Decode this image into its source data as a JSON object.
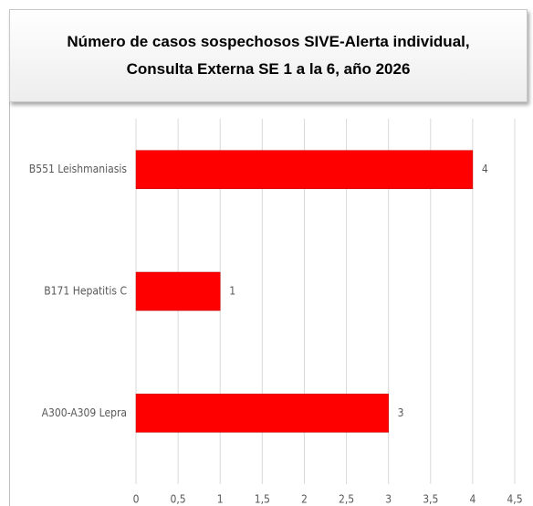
{
  "chart_data": {
    "type": "hbar",
    "title": [
      "Número de casos sospechosos SIVE-Alerta individual,",
      "Consulta Externa SE 1 a la 6, año 2026"
    ],
    "categories": [
      "B551 Leishmaniasis",
      "B171 Hepatitis C",
      "A300-A309 Lepra"
    ],
    "values": [
      4,
      1,
      3
    ],
    "color": "#ff0000",
    "xlim": [
      0,
      4.5
    ],
    "xticks": [
      0,
      {
        "value": 0.5,
        "label": "0,5"
      },
      1,
      {
        "value": 1.5,
        "label": "1,5"
      },
      2,
      {
        "value": 2.5,
        "label": "2,5"
      },
      3,
      {
        "value": 3.5,
        "label": "3,5"
      },
      4,
      {
        "value": 4.5,
        "label": "4,5"
      }
    ],
    "grid": true
  }
}
